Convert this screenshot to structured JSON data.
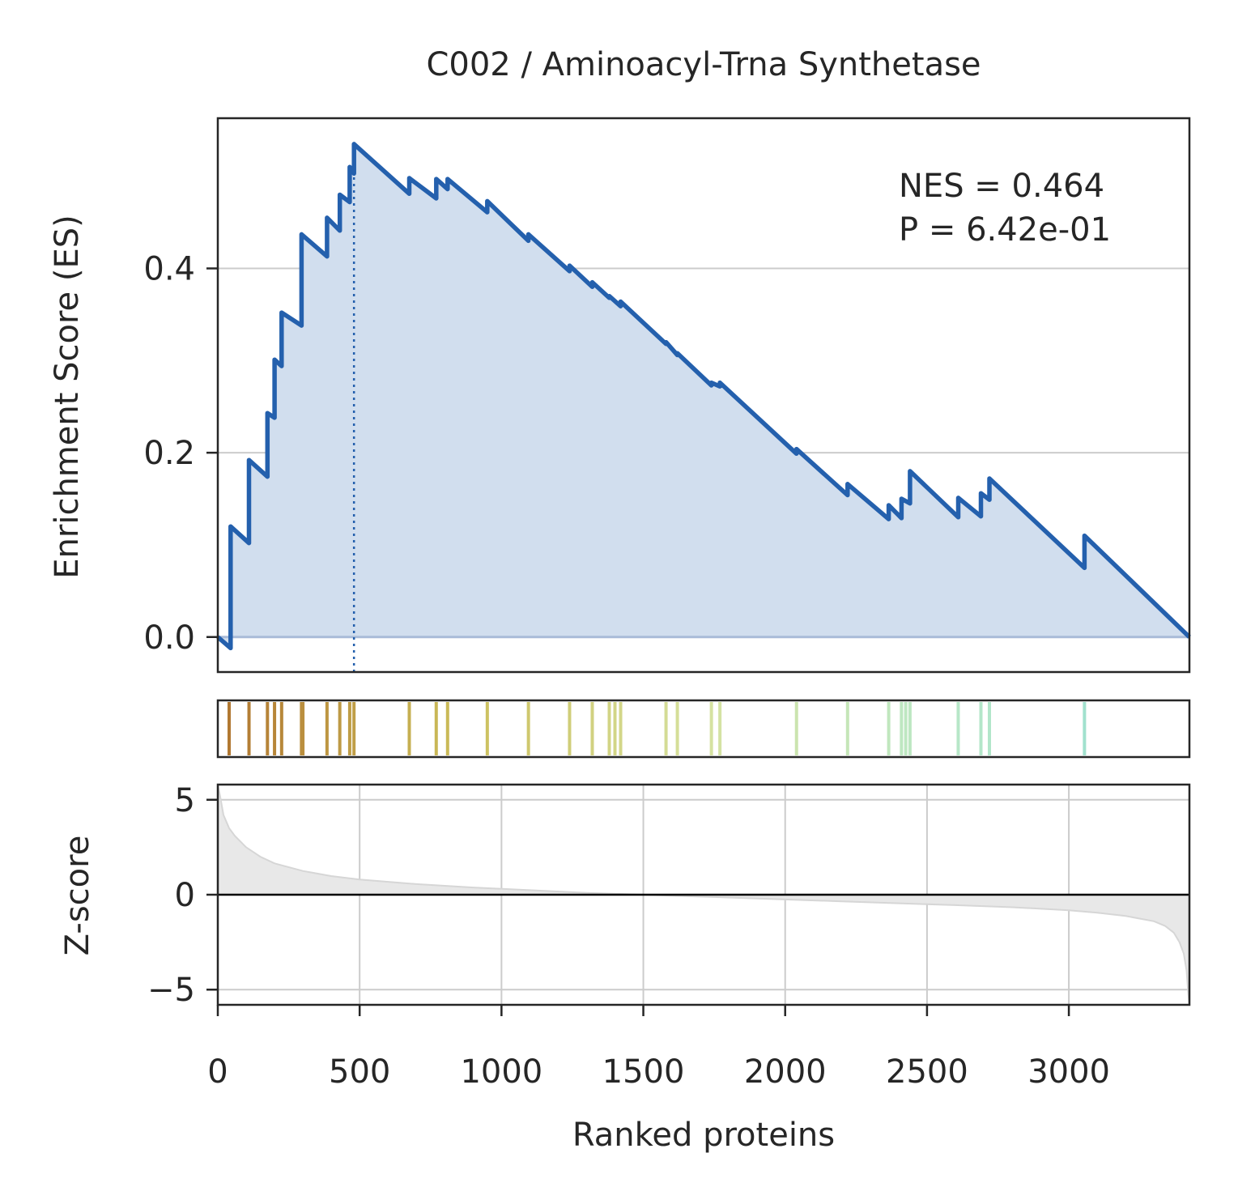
{
  "chart_data": {
    "type": "line",
    "title": "C002 / Aminoacyl-Trna Synthetase",
    "xlabel": "Ranked proteins",
    "xlim": [
      0,
      3425
    ],
    "x_ticks": [
      0,
      500,
      1000,
      1500,
      2000,
      2500,
      3000
    ],
    "x_tick_labels": [
      "0",
      "500",
      "1000",
      "1500",
      "2000",
      "2500",
      "3000"
    ],
    "grid": true,
    "es_panel": {
      "ylabel": "Enrichment Score (ES)",
      "ylim": [
        -0.038,
        0.563
      ],
      "y_ticks": [
        0.0,
        0.2,
        0.4
      ],
      "y_tick_labels": [
        "0.0",
        "0.2",
        "0.4"
      ],
      "annotation_lines": [
        "NES = 0.464",
        "P = 6.42e-01"
      ],
      "peak_rank": 480,
      "line_color": "#2460ad",
      "fill_color": "#d1deee",
      "es_curve": {
        "x": [
          0,
          45,
          45,
          110,
          110,
          175,
          175,
          200,
          200,
          225,
          225,
          295,
          295,
          385,
          385,
          430,
          430,
          465,
          465,
          480,
          480,
          675,
          675,
          770,
          770,
          810,
          810,
          950,
          950,
          1095,
          1095,
          1240,
          1240,
          1320,
          1320,
          1380,
          1380,
          1420,
          1420,
          1580,
          1580,
          1620,
          1620,
          1740,
          1740,
          1770,
          1770,
          2040,
          2040,
          2220,
          2220,
          2365,
          2365,
          2410,
          2410,
          2440,
          2440,
          2610,
          2610,
          2690,
          2690,
          2720,
          2720,
          3055,
          3055,
          3425
        ],
        "y": [
          0.0,
          -0.012,
          0.12,
          0.102,
          0.192,
          0.174,
          0.243,
          0.238,
          0.301,
          0.294,
          0.352,
          0.338,
          0.437,
          0.413,
          0.455,
          0.441,
          0.48,
          0.472,
          0.51,
          0.503,
          0.535,
          0.481,
          0.498,
          0.476,
          0.497,
          0.486,
          0.497,
          0.461,
          0.473,
          0.43,
          0.437,
          0.397,
          0.403,
          0.38,
          0.385,
          0.368,
          0.37,
          0.359,
          0.364,
          0.318,
          0.32,
          0.306,
          0.308,
          0.273,
          0.276,
          0.272,
          0.276,
          0.199,
          0.204,
          0.154,
          0.166,
          0.128,
          0.143,
          0.129,
          0.15,
          0.145,
          0.18,
          0.13,
          0.151,
          0.131,
          0.156,
          0.149,
          0.172,
          0.075,
          0.11,
          0.0
        ]
      }
    },
    "hits_panel": {
      "hit_ranks": [
        40,
        110,
        175,
        200,
        225,
        295,
        300,
        385,
        430,
        465,
        480,
        675,
        770,
        810,
        950,
        1095,
        1240,
        1320,
        1380,
        1400,
        1420,
        1580,
        1620,
        1740,
        1770,
        2040,
        2220,
        2365,
        2410,
        2425,
        2440,
        2610,
        2690,
        2720,
        3055
      ],
      "color_start": "#b0752f",
      "color_end": "#8fdcd2"
    },
    "zscore_panel": {
      "ylabel": "Z-score",
      "ylim": [
        -5.8,
        5.8
      ],
      "y_ticks": [
        5,
        0,
        -5
      ],
      "y_tick_labels": [
        "5",
        "0",
        "−5"
      ],
      "fill_color": "#e8e8e8",
      "line_color": "#d6d6d6",
      "curve": {
        "x": [
          0,
          8,
          20,
          40,
          60,
          100,
          150,
          200,
          300,
          400,
          500,
          700,
          900,
          1100,
          1300,
          1500,
          1600,
          1800,
          2000,
          2200,
          2400,
          2600,
          2800,
          3000,
          3100,
          3200,
          3300,
          3340,
          3370,
          3390,
          3405,
          3415,
          3420,
          3425
        ],
        "y": [
          5.8,
          5.2,
          4.2,
          3.5,
          3.1,
          2.5,
          2.0,
          1.65,
          1.25,
          0.98,
          0.8,
          0.56,
          0.38,
          0.24,
          0.1,
          0.0,
          -0.05,
          -0.15,
          -0.25,
          -0.35,
          -0.45,
          -0.55,
          -0.66,
          -0.82,
          -0.95,
          -1.12,
          -1.4,
          -1.65,
          -2.0,
          -2.5,
          -3.1,
          -4.0,
          -5.0,
          -5.8
        ]
      }
    }
  }
}
